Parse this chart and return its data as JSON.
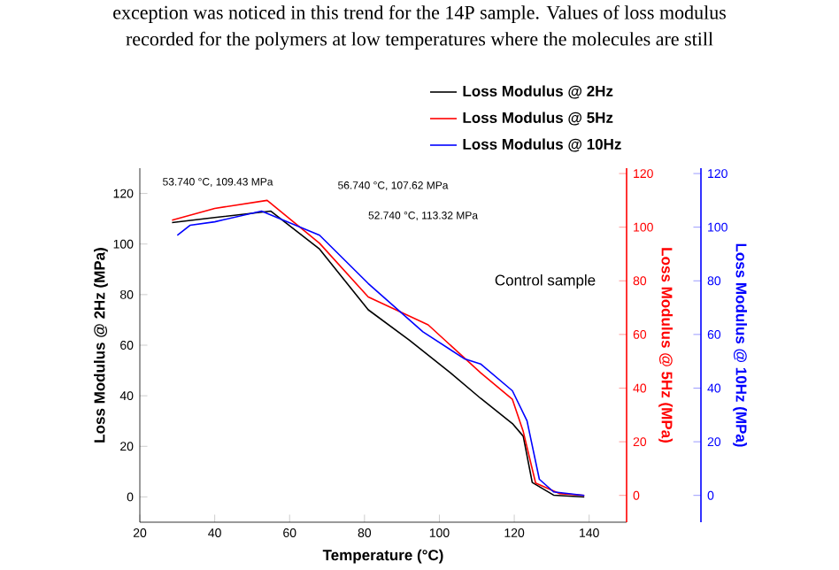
{
  "chart_data": {
    "type": "line",
    "xlabel": "Temperature (°C)",
    "ylabel": "Loss Modulus @ 2Hz (MPa)",
    "y2label": "Loss Modulus @ 5Hz (MPa)",
    "y3label": "Loss Modulus @ 10Hz (MPa)",
    "xlim": [
      20,
      150
    ],
    "xticks": [
      20,
      40,
      60,
      80,
      100,
      120,
      140
    ],
    "ylim": [
      -10,
      130
    ],
    "yticks": [
      0,
      20,
      40,
      60,
      80,
      100,
      120
    ],
    "y2lim": [
      -10,
      122
    ],
    "y2ticks": [
      0,
      20,
      40,
      60,
      80,
      100,
      120
    ],
    "y3lim": [
      -10,
      122
    ],
    "y3ticks": [
      0,
      20,
      40,
      60,
      80,
      100,
      120
    ],
    "legend": "top right",
    "grid": false,
    "marker": "none",
    "line_style": "solid",
    "annotations": [
      "exception was noticed in this trend for the 14P sample. Values of loss modulus",
      "recorded for the polymers at low temperatures where the molecules are still",
      "53.740 °C, 109.43 MPa",
      "56.740 °C, 107.62 MPa",
      "52.740 °C, 113.32 MPa",
      "Control sample"
    ],
    "series": [
      {
        "name": "Loss Modulus @ 2Hz",
        "color": "#000000",
        "x": [
          28.6,
          40,
          55,
          68,
          81,
          92,
          103,
          111,
          119.5,
          122.4,
          124.8,
          130.5,
          138.7
        ],
        "values": [
          108.5,
          110.5,
          113,
          98,
          74,
          62,
          49,
          39,
          29,
          24,
          5.7,
          0.7,
          0
        ]
      },
      {
        "name": "Loss Modulus @ 5Hz",
        "color": "#ff0000",
        "axis": "y2",
        "x": [
          28.6,
          40,
          54,
          68,
          81,
          97,
          111,
          119.5,
          122.4,
          125.7,
          132,
          138.7
        ],
        "values": [
          102.6,
          107,
          110,
          94,
          74,
          63.6,
          45.7,
          35.8,
          23.8,
          4.6,
          0.7,
          0
        ]
      },
      {
        "name": "Loss Modulus @ 10Hz",
        "color": "#0000ff",
        "axis": "y3",
        "x": [
          30,
          33.4,
          40,
          52.5,
          68,
          81,
          95.6,
          106.6,
          111,
          119.5,
          123.4,
          126.7,
          130.5,
          138.7
        ],
        "values": [
          97,
          100.7,
          102,
          106,
          97,
          79,
          61,
          51,
          49,
          39,
          27.8,
          6,
          1.3,
          0
        ]
      }
    ]
  }
}
